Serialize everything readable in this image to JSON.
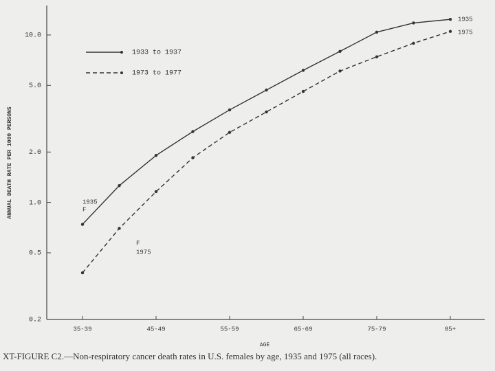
{
  "chart_data": {
    "type": "line",
    "caption": "XT-FIGURE C2.—Non-respiratory cancer death rates in U.S. females by age, 1935 and 1975 (all races).",
    "xlabel": "AGE",
    "ylabel": "ANNUAL DEATH RATE PER 1000 PERSONS",
    "categories": [
      "35-39",
      null,
      "45-49",
      null,
      "55-59",
      null,
      "65-69",
      null,
      "75-79",
      null,
      "85+"
    ],
    "series": [
      {
        "name": "1933 to 1937",
        "color": "#333333",
        "line_style": "solid",
        "values": [
          0.74,
          1.26,
          1.91,
          2.65,
          3.57,
          4.69,
          6.15,
          7.98,
          10.4,
          11.8,
          12.4
        ]
      },
      {
        "name": "1973 to 1977",
        "color": "#333333",
        "line_style": "dashed",
        "values": [
          0.38,
          0.7,
          1.16,
          1.85,
          2.62,
          3.47,
          4.6,
          6.09,
          7.41,
          8.93,
          10.5
        ]
      }
    ],
    "log_scale_y": true,
    "ylim": [
      0.2,
      15
    ],
    "yticks": [
      {
        "value": 10,
        "label": "10.0"
      },
      {
        "value": 5,
        "label": "5.0"
      },
      {
        "value": 2,
        "label": "2.0"
      },
      {
        "value": 1,
        "label": "1.0"
      },
      0.5,
      0.2
    ],
    "annotations": [
      "1935",
      "F",
      "F",
      "1975",
      "1935",
      "1975"
    ]
  }
}
